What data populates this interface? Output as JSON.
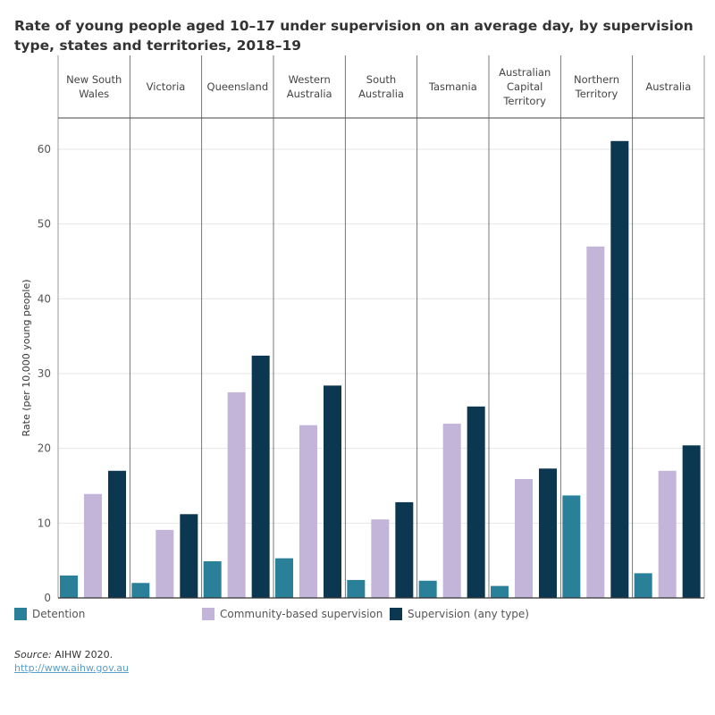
{
  "title": "Rate of young people aged 10–17 under supervision on an average day, by supervision type, states and territories, 2018–19",
  "source_label": "Source:",
  "source_text": " AIHW 2020.",
  "link": "http://www.aihw.gov.au",
  "chart_data": {
    "type": "bar",
    "title": "Rate of young people aged 10–17 under supervision on an average day, by supervision type, states and territories, 2018–19",
    "ylabel": "Rate (per 10,000 young people)",
    "xlabel": "",
    "ylim": [
      0,
      64
    ],
    "yticks": [
      0,
      10,
      20,
      30,
      40,
      50,
      60
    ],
    "grid": true,
    "legend": "bottom",
    "categories": [
      [
        "New South",
        "Wales"
      ],
      [
        "Victoria"
      ],
      [
        "Queensland"
      ],
      [
        "Western",
        "Australia"
      ],
      [
        "South",
        "Australia"
      ],
      [
        "Tasmania"
      ],
      [
        "Australian",
        "Capital",
        "Territory"
      ],
      [
        "Northern",
        "Territory"
      ],
      [
        "Australia"
      ]
    ],
    "series": [
      {
        "name": "Detention",
        "color": "#2a7f99",
        "values": [
          3.0,
          2.0,
          4.9,
          5.3,
          2.4,
          2.3,
          1.6,
          13.7,
          3.3
        ]
      },
      {
        "name": "Community-based supervision",
        "color": "#c3b5da",
        "values": [
          13.9,
          9.1,
          27.5,
          23.1,
          10.5,
          23.3,
          15.9,
          47.0,
          17.0
        ]
      },
      {
        "name": "Supervision (any type)",
        "color": "#0b3850",
        "values": [
          17.0,
          11.2,
          32.4,
          28.4,
          12.8,
          25.6,
          17.3,
          61.1,
          20.4
        ]
      }
    ]
  }
}
